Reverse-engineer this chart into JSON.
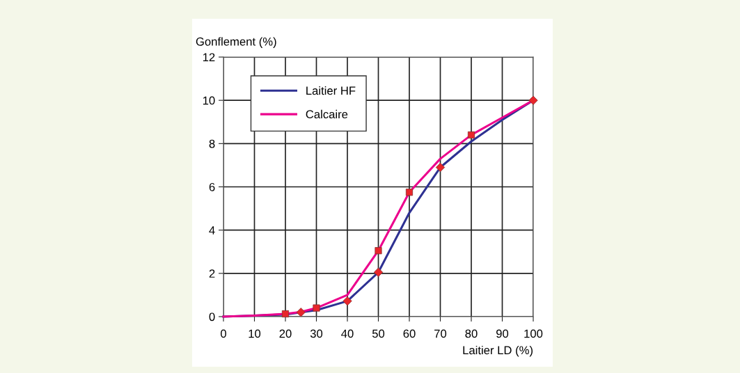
{
  "chart_data": {
    "type": "line",
    "xlabel": "Laitier LD (%)",
    "ylabel": "Gonflement (%)",
    "xlim": [
      0,
      100
    ],
    "ylim": [
      0,
      12
    ],
    "xticks": [
      0,
      10,
      20,
      30,
      40,
      50,
      60,
      70,
      80,
      90,
      100
    ],
    "yticks": [
      0,
      2,
      4,
      6,
      8,
      10,
      12
    ],
    "grid": true,
    "legend": "top left",
    "marker": "none",
    "line_style": "solid",
    "series": [
      {
        "name": "Laitier HF",
        "color": "#2e3192",
        "x": [
          0,
          10,
          20,
          25,
          30,
          40,
          50,
          60,
          70,
          80,
          90,
          100
        ],
        "values": [
          0,
          0.05,
          0.1,
          0.2,
          0.3,
          0.72,
          2.05,
          4.8,
          6.9,
          8.1,
          9.1,
          10
        ]
      },
      {
        "name": "Calcaire",
        "color": "#ec008c",
        "x": [
          0,
          10,
          20,
          25,
          30,
          40,
          50,
          60,
          70,
          80,
          90,
          100
        ],
        "values": [
          0,
          0.05,
          0.13,
          0.22,
          0.4,
          1.0,
          3.05,
          5.75,
          7.3,
          8.4,
          9.2,
          10
        ]
      },
      {
        "type": "scatter",
        "color": "#e8262b",
        "marker": "diamond",
        "x": [
          25,
          40,
          50,
          70,
          100
        ],
        "values": [
          0.2,
          0.72,
          2.05,
          6.9,
          10
        ]
      },
      {
        "type": "scatter",
        "color": "#e8262b",
        "marker": "square",
        "x": [
          20,
          30,
          50,
          60,
          80
        ],
        "values": [
          0.13,
          0.4,
          3.05,
          5.75,
          8.4
        ]
      }
    ]
  }
}
